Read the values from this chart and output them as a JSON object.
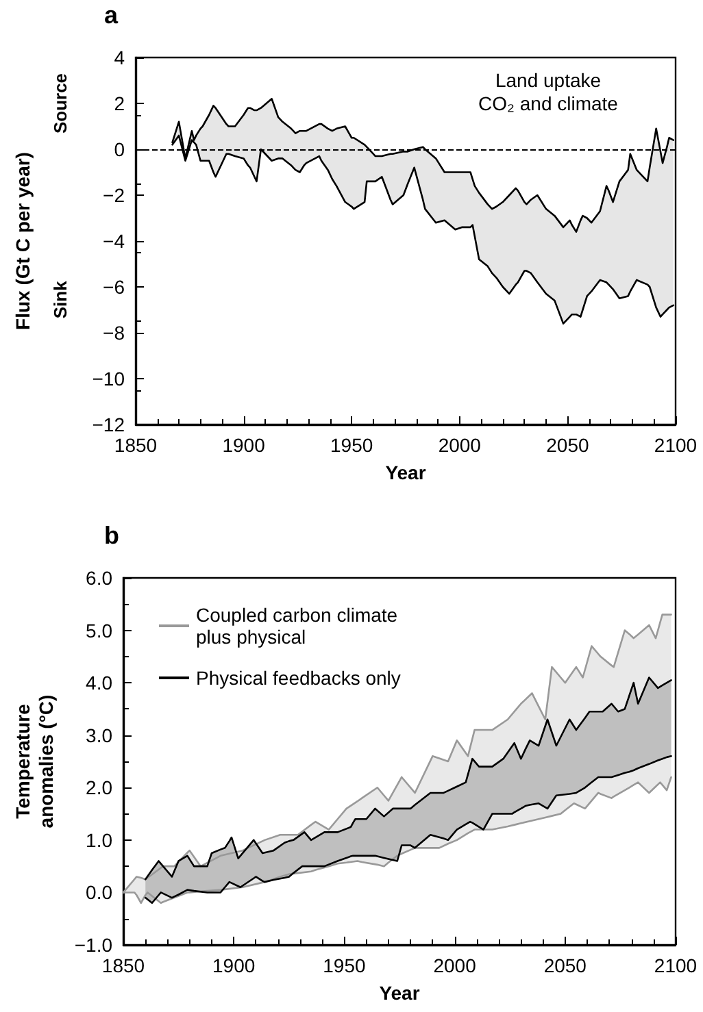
{
  "chart_data": [
    {
      "type": "line",
      "title": "a",
      "xlabel": "Year",
      "ylabel": "Flux (Gt C per year)",
      "annotations": [
        "Source",
        "Sink",
        "Land uptake\nCO₂ and climate"
      ],
      "xlim": [
        1850,
        2100
      ],
      "xticks": [
        1850,
        1900,
        1950,
        2000,
        2050,
        2100
      ],
      "ylim": [
        -12,
        4
      ],
      "yticks": [
        {
          "value": -12,
          "label": "−12"
        },
        {
          "value": -10,
          "label": "−10"
        },
        {
          "value": -8,
          "label": "−8"
        },
        {
          "value": -6,
          "label": "−6"
        },
        {
          "value": -4,
          "label": "−4"
        },
        {
          "value": -2,
          "label": "−2"
        },
        0,
        2,
        4
      ],
      "ref_lines": [
        {
          "axis": "y",
          "value": 0,
          "label": null,
          "color": "#000000",
          "line_style": "dashed"
        }
      ],
      "series": [
        {
          "color": "#000000",
          "x": [
            1867,
            1870,
            1873,
            1876,
            1877,
            1878,
            1880,
            1881,
            1884,
            1886,
            1887,
            1892,
            1893,
            1896,
            1900,
            1902,
            1903,
            1905,
            1906,
            1908,
            1913,
            1916,
            1918,
            1922,
            1923,
            1924,
            1926,
            1928,
            1929,
            1935,
            1936,
            1939,
            1941,
            1943,
            1947,
            1950,
            1951,
            1956,
            1957,
            1960,
            1961,
            1964,
            1968,
            1969,
            1974,
            1976,
            1979,
            1983,
            1984,
            1989,
            1993,
            1998,
            2001,
            2003,
            2005,
            2006,
            2007,
            2009,
            2013,
            2015,
            2017,
            2020,
            2023,
            2026,
            2027,
            2030,
            2031,
            2033,
            2036,
            2040,
            2044,
            2048,
            2051,
            2052,
            2054,
            2056,
            2057,
            2059,
            2061,
            2065,
            2068,
            2069,
            2071,
            2074,
            2078,
            2079,
            2082,
            2087,
            2088,
            2091,
            2093,
            2094,
            2096,
            2097,
            2099
          ],
          "upper": [
            0.3,
            1.2,
            -0.4,
            0.8,
            0.4,
            0.6,
            0.9,
            1.0,
            1.5,
            1.9,
            1.8,
            1.1,
            1.0,
            1.0,
            1.5,
            1.8,
            1.8,
            1.7,
            1.7,
            1.8,
            2.2,
            1.4,
            1.2,
            0.9,
            0.8,
            0.7,
            0.8,
            0.8,
            0.8,
            1.1,
            1.1,
            0.9,
            0.8,
            0.9,
            1.0,
            0.5,
            0.5,
            0.2,
            0.1,
            -0.2,
            -0.3,
            -0.3,
            -0.2,
            -0.2,
            -0.1,
            -0.1,
            0.0,
            0.1,
            0.0,
            -0.4,
            -1.0,
            -1.0,
            -1.0,
            -1.0,
            -1.0,
            -1.3,
            -1.6,
            -1.9,
            -2.4,
            -2.6,
            -2.5,
            -2.3,
            -2.0,
            -1.7,
            -1.8,
            -2.3,
            -2.4,
            -2.2,
            -2.0,
            -2.6,
            -2.9,
            -3.4,
            -3.1,
            -3.3,
            -3.6,
            -3.1,
            -2.9,
            -3.0,
            -3.2,
            -2.7,
            -1.6,
            -1.8,
            -2.3,
            -1.4,
            -0.9,
            -0.2,
            -0.9,
            -1.4,
            -0.8,
            0.9,
            -0.1,
            -0.6,
            0.1,
            0.5,
            0.4
          ],
          "values": [
            0.3,
            1.2,
            -0.4,
            0.8,
            0.4,
            0.6,
            0.9,
            1.0,
            1.5,
            1.9,
            1.8,
            1.1,
            1.0,
            1.0,
            1.5,
            1.8,
            1.8,
            1.7,
            1.7,
            1.8,
            2.2,
            1.4,
            1.2,
            0.9,
            0.8,
            0.7,
            0.8,
            0.8,
            0.8,
            1.1,
            1.1,
            0.9,
            0.8,
            0.9,
            1.0,
            0.5,
            0.5,
            0.2,
            0.1,
            -0.2,
            -0.3,
            -0.3,
            -0.2,
            -0.2,
            -0.1,
            -0.1,
            0.0,
            0.1,
            0.0,
            -0.4,
            -1.0,
            -1.0,
            -1.0,
            -1.0,
            -1.0,
            -1.3,
            -1.6,
            -1.9,
            -2.4,
            -2.6,
            -2.5,
            -2.3,
            -2.0,
            -1.7,
            -1.8,
            -2.3,
            -2.4,
            -2.2,
            -2.0,
            -2.6,
            -2.9,
            -3.4,
            -3.1,
            -3.3,
            -3.6,
            -3.1,
            -2.9,
            -3.0,
            -3.2,
            -2.7,
            -1.6,
            -1.8,
            -2.3,
            -1.4,
            -0.9,
            -0.2,
            -0.9,
            -1.4,
            -0.8,
            0.9,
            -0.1,
            -0.6,
            0.1,
            0.5,
            0.4
          ],
          "lower": [
            0.2,
            0.6,
            -0.5,
            0.4,
            0.3,
            0.2,
            -0.5,
            -0.5,
            -0.5,
            -1.0,
            -1.2,
            -0.2,
            -0.2,
            -0.3,
            -0.4,
            -0.7,
            -0.8,
            -1.2,
            -1.4,
            0.0,
            -0.5,
            -0.4,
            -0.4,
            -0.7,
            -0.8,
            -0.9,
            -1.0,
            -0.7,
            -0.6,
            -0.3,
            -0.5,
            -0.9,
            -1.3,
            -1.6,
            -2.3,
            -2.5,
            -2.6,
            -2.3,
            -1.4,
            -1.4,
            -1.4,
            -1.2,
            -2.2,
            -2.4,
            -2.0,
            -1.5,
            -0.8,
            -2.2,
            -2.6,
            -3.2,
            -3.1,
            -3.5,
            -3.4,
            -3.4,
            -3.4,
            -3.3,
            -3.8,
            -4.8,
            -5.1,
            -5.4,
            -5.6,
            -6.0,
            -6.3,
            -5.9,
            -5.8,
            -5.3,
            -5.3,
            -5.4,
            -5.8,
            -6.3,
            -6.6,
            -7.6,
            -7.3,
            -7.2,
            -7.2,
            -7.3,
            -7.0,
            -6.4,
            -6.2,
            -5.7,
            -5.8,
            -5.9,
            -6.1,
            -6.5,
            -6.4,
            -6.2,
            -5.7,
            -5.9,
            -6.0,
            -6.9,
            -7.3,
            -7.2,
            -7.0,
            -6.9,
            -6.8
          ]
        },
        {
          "color": "#000000",
          "x": [
            1867,
            1870,
            1873,
            1876,
            1877,
            1878,
            1880,
            1881,
            1884,
            1886,
            1887,
            1892,
            1893,
            1896,
            1900,
            1902,
            1903,
            1905,
            1906,
            1908,
            1913,
            1916,
            1918,
            1922,
            1923,
            1924,
            1926,
            1928,
            1929,
            1935,
            1936,
            1939,
            1941,
            1943,
            1947,
            1950,
            1951,
            1956,
            1957,
            1960,
            1961,
            1964,
            1968,
            1969,
            1974,
            1976,
            1979,
            1983,
            1984,
            1989,
            1993,
            1998,
            2001,
            2003,
            2005,
            2006,
            2007,
            2009,
            2013,
            2015,
            2017,
            2020,
            2023,
            2026,
            2027,
            2030,
            2031,
            2033,
            2036,
            2040,
            2044,
            2048,
            2051,
            2052,
            2054,
            2056,
            2057,
            2059,
            2061,
            2065,
            2068,
            2069,
            2071,
            2074,
            2078,
            2079,
            2082,
            2087,
            2088,
            2091,
            2093,
            2094,
            2096,
            2097,
            2099
          ],
          "values": [
            0.2,
            0.6,
            -0.5,
            0.4,
            0.3,
            0.2,
            -0.5,
            -0.5,
            -0.5,
            -1.0,
            -1.2,
            -0.2,
            -0.2,
            -0.3,
            -0.4,
            -0.7,
            -0.8,
            -1.2,
            -1.4,
            0.0,
            -0.5,
            -0.4,
            -0.4,
            -0.7,
            -0.8,
            -0.9,
            -1.0,
            -0.7,
            -0.6,
            -0.3,
            -0.5,
            -0.9,
            -1.3,
            -1.6,
            -2.3,
            -2.5,
            -2.6,
            -2.3,
            -1.4,
            -1.4,
            -1.4,
            -1.2,
            -2.2,
            -2.4,
            -2.0,
            -1.5,
            -0.8,
            -2.2,
            -2.6,
            -3.2,
            -3.1,
            -3.5,
            -3.4,
            -3.4,
            -3.4,
            -3.3,
            -3.8,
            -4.8,
            -5.1,
            -5.4,
            -5.6,
            -6.0,
            -6.3,
            -5.9,
            -5.8,
            -5.3,
            -5.3,
            -5.4,
            -5.8,
            -6.3,
            -6.6,
            -7.6,
            -7.3,
            -7.2,
            -7.2,
            -7.3,
            -7.0,
            -6.4,
            -6.2,
            -5.7,
            -5.8,
            -5.9,
            -6.1,
            -6.5,
            -6.4,
            -6.2,
            -5.7,
            -5.9,
            -6.0,
            -6.9,
            -7.3,
            -7.2,
            -7.0,
            -6.9,
            -6.8
          ]
        }
      ]
    },
    {
      "type": "line",
      "title": "b",
      "xlabel": "Year",
      "ylabel": "Temperature\nanomalies (°C)",
      "legend": "top left",
      "xlim": [
        1850,
        2100
      ],
      "xticks": [
        1850,
        1900,
        1950,
        2000,
        2050,
        2100
      ],
      "ylim": [
        -1,
        6
      ],
      "yticks": [
        {
          "value": -1,
          "label": "−1.0"
        },
        {
          "value": 0,
          "label": "0.0"
        },
        {
          "value": 1,
          "label": "1.0"
        },
        {
          "value": 2,
          "label": "2.0"
        },
        {
          "value": 3,
          "label": "3.0"
        },
        {
          "value": 4,
          "label": "4.0"
        },
        {
          "value": 5,
          "label": "5.0"
        },
        {
          "value": 6,
          "label": "6.0"
        }
      ],
      "series": [
        {
          "name": "Coupled carbon climate plus physical",
          "color": "#999999",
          "x": [
            1850,
            1855,
            1856,
            1858,
            1860,
            1861,
            1867,
            1868,
            1873,
            1879,
            1880,
            1885,
            1894,
            1904,
            1914,
            1921,
            1925,
            1929,
            1935,
            1937,
            1943,
            1947,
            1951,
            1956,
            1958,
            1965,
            1968,
            1970,
            1974,
            1976,
            1982,
            1990,
            1993,
            1997,
            2001,
            2006,
            2009,
            2017,
            2024,
            2028,
            2030,
            2035,
            2038,
            2041,
            2044,
            2048,
            2050,
            2054,
            2055,
            2058,
            2059,
            2062,
            2065,
            2066,
            2071,
            2072,
            2077,
            2079,
            2081,
            2083,
            2088,
            2091,
            2093,
            2094,
            2096,
            2098
          ],
          "upper": [
            0.0,
            0.25,
            0.3,
            0.28,
            0.25,
            0.28,
            0.47,
            0.5,
            0.5,
            0.76,
            0.8,
            0.5,
            0.7,
            0.8,
            1.0,
            1.1,
            1.1,
            1.1,
            1.29,
            1.35,
            1.2,
            1.4,
            1.6,
            1.74,
            1.8,
            2.0,
            1.85,
            1.75,
            2.05,
            2.2,
            1.9,
            2.6,
            2.56,
            2.5,
            2.9,
            2.6,
            3.1,
            3.1,
            3.3,
            3.5,
            3.6,
            3.8,
            3.55,
            3.3,
            4.3,
            4.1,
            4.0,
            4.24,
            4.3,
            4.1,
            4.25,
            4.7,
            4.55,
            4.5,
            4.33,
            4.3,
            5.0,
            4.93,
            4.85,
            4.92,
            5.1,
            4.85,
            5.15,
            5.3,
            5.3,
            5.3
          ],
          "values": [
            0.0,
            0.25,
            0.3,
            0.28,
            0.25,
            0.28,
            0.47,
            0.5,
            0.5,
            0.76,
            0.8,
            0.5,
            0.7,
            0.8,
            1.0,
            1.1,
            1.1,
            1.1,
            1.29,
            1.35,
            1.2,
            1.4,
            1.6,
            1.74,
            1.8,
            2.0,
            1.85,
            1.75,
            2.05,
            2.2,
            1.9,
            2.6,
            2.56,
            2.5,
            2.9,
            2.6,
            3.1,
            3.1,
            3.3,
            3.5,
            3.6,
            3.8,
            3.55,
            3.3,
            4.3,
            4.1,
            4.0,
            4.24,
            4.3,
            4.1,
            4.25,
            4.7,
            4.55,
            4.5,
            4.33,
            4.3,
            5.0,
            4.93,
            4.85,
            4.92,
            5.1,
            4.85,
            5.15,
            5.3,
            5.3,
            5.3
          ],
          "lower": [
            0.0,
            0.0,
            -0.05,
            -0.2,
            -0.05,
            0.0,
            -0.2,
            -0.18,
            -0.1,
            0.0,
            0.0,
            0.02,
            0.05,
            0.1,
            0.2,
            0.3,
            0.35,
            0.37,
            0.4,
            0.43,
            0.5,
            0.55,
            0.57,
            0.6,
            0.58,
            0.53,
            0.5,
            0.57,
            0.7,
            0.74,
            0.85,
            0.85,
            0.85,
            0.93,
            1.0,
            1.13,
            1.2,
            1.2,
            1.26,
            1.3,
            1.32,
            1.37,
            1.4,
            1.43,
            1.46,
            1.5,
            1.57,
            1.7,
            1.68,
            1.62,
            1.6,
            1.75,
            1.9,
            1.88,
            1.8,
            1.83,
            1.95,
            2.0,
            2.05,
            2.1,
            1.9,
            2.02,
            2.1,
            2.05,
            1.95,
            2.2
          ]
        },
        {
          "color": "#999999",
          "x": [
            1850,
            1855,
            1856,
            1858,
            1860,
            1861,
            1867,
            1868,
            1873,
            1879,
            1880,
            1885,
            1894,
            1904,
            1914,
            1921,
            1925,
            1929,
            1935,
            1937,
            1943,
            1947,
            1951,
            1956,
            1958,
            1965,
            1968,
            1970,
            1974,
            1976,
            1982,
            1990,
            1993,
            1997,
            2001,
            2006,
            2009,
            2017,
            2024,
            2028,
            2030,
            2035,
            2038,
            2041,
            2044,
            2048,
            2050,
            2054,
            2055,
            2058,
            2059,
            2062,
            2065,
            2066,
            2071,
            2072,
            2077,
            2079,
            2081,
            2083,
            2088,
            2091,
            2093,
            2094,
            2096,
            2098
          ],
          "values": [
            0.0,
            0.0,
            -0.05,
            -0.2,
            -0.05,
            0.0,
            -0.2,
            -0.18,
            -0.1,
            0.0,
            0.0,
            0.02,
            0.05,
            0.1,
            0.2,
            0.3,
            0.35,
            0.37,
            0.4,
            0.43,
            0.5,
            0.55,
            0.57,
            0.6,
            0.58,
            0.53,
            0.5,
            0.57,
            0.7,
            0.74,
            0.85,
            0.85,
            0.85,
            0.93,
            1.0,
            1.13,
            1.2,
            1.2,
            1.26,
            1.3,
            1.32,
            1.37,
            1.4,
            1.43,
            1.46,
            1.5,
            1.57,
            1.7,
            1.68,
            1.62,
            1.6,
            1.75,
            1.9,
            1.88,
            1.8,
            1.83,
            1.95,
            2.0,
            2.05,
            2.1,
            1.9,
            2.02,
            2.1,
            2.05,
            1.95,
            2.2
          ]
        },
        {
          "name": "Physical feedbacks only",
          "color": "#000000",
          "x": [
            1860,
            1863,
            1866,
            1867,
            1872,
            1875,
            1879,
            1882,
            1888,
            1890,
            1894,
            1896,
            1898,
            1899,
            1902,
            1903,
            1909,
            1910,
            1913,
            1914,
            1918,
            1923,
            1925,
            1927,
            1931,
            1932,
            1935,
            1941,
            1947,
            1953,
            1954,
            1955,
            1960,
            1964,
            1968,
            1972,
            1974,
            1976,
            1980,
            1982,
            1989,
            1995,
            1997,
            2000,
            2001,
            2005,
            2007,
            2008,
            2011,
            2013,
            2017,
            2022,
            2026,
            2027,
            2030,
            2032,
            2034,
            2038,
            2042,
            2046,
            2052,
            2055,
            2059,
            2061,
            2065,
            2067,
            2071,
            2074,
            2077,
            2079,
            2081,
            2083,
            2088,
            2092,
            2094,
            2096,
            2098
          ],
          "upper": [
            0.25,
            0.43,
            0.6,
            0.55,
            0.3,
            0.6,
            0.7,
            0.5,
            0.5,
            0.75,
            0.82,
            0.85,
            0.98,
            1.05,
            0.65,
            0.7,
            1.0,
            0.94,
            0.75,
            0.76,
            0.8,
            0.95,
            0.98,
            1.0,
            1.12,
            1.15,
            1.0,
            1.15,
            1.15,
            1.25,
            1.33,
            1.4,
            1.4,
            1.6,
            1.45,
            1.6,
            1.6,
            1.6,
            1.6,
            1.67,
            1.9,
            1.9,
            1.94,
            2.0,
            2.02,
            2.1,
            2.4,
            2.55,
            2.4,
            2.4,
            2.4,
            2.55,
            2.79,
            2.85,
            2.55,
            2.73,
            2.9,
            2.8,
            3.3,
            2.8,
            3.3,
            3.1,
            3.33,
            3.45,
            3.45,
            3.45,
            3.6,
            3.45,
            3.5,
            3.75,
            4.0,
            3.6,
            4.1,
            3.9,
            3.95,
            4.0,
            4.05
          ],
          "values": [
            0.25,
            0.43,
            0.6,
            0.55,
            0.3,
            0.6,
            0.7,
            0.5,
            0.5,
            0.75,
            0.82,
            0.85,
            0.98,
            1.05,
            0.65,
            0.7,
            1.0,
            0.94,
            0.75,
            0.76,
            0.8,
            0.95,
            0.98,
            1.0,
            1.12,
            1.15,
            1.0,
            1.15,
            1.15,
            1.25,
            1.33,
            1.4,
            1.4,
            1.6,
            1.45,
            1.6,
            1.6,
            1.6,
            1.6,
            1.67,
            1.9,
            1.9,
            1.94,
            2.0,
            2.02,
            2.1,
            2.4,
            2.55,
            2.4,
            2.4,
            2.4,
            2.55,
            2.79,
            2.85,
            2.55,
            2.73,
            2.9,
            2.8,
            3.3,
            2.8,
            3.3,
            3.1,
            3.33,
            3.45,
            3.45,
            3.45,
            3.6,
            3.45,
            3.5,
            3.75,
            4.0,
            3.6,
            4.1,
            3.9,
            3.95,
            4.0,
            4.05
          ],
          "lower": [
            -0.1,
            -0.2,
            -0.05,
            0.0,
            -0.1,
            -0.04,
            0.05,
            0.03,
            0.0,
            0.0,
            0.0,
            0.1,
            0.2,
            0.18,
            0.12,
            0.1,
            0.27,
            0.3,
            0.22,
            0.2,
            0.24,
            0.28,
            0.3,
            0.37,
            0.5,
            0.5,
            0.5,
            0.5,
            0.6,
            0.69,
            0.7,
            0.7,
            0.7,
            0.7,
            0.66,
            0.62,
            0.6,
            0.9,
            0.9,
            0.85,
            1.1,
            1.03,
            1.0,
            1.15,
            1.2,
            1.3,
            1.35,
            1.33,
            1.25,
            1.2,
            1.5,
            1.5,
            1.5,
            1.53,
            1.6,
            1.65,
            1.67,
            1.7,
            1.6,
            1.85,
            1.88,
            1.9,
            2.0,
            2.07,
            2.2,
            2.2,
            2.2,
            2.24,
            2.28,
            2.3,
            2.33,
            2.37,
            2.45,
            2.52,
            2.55,
            2.58,
            2.6
          ]
        },
        {
          "color": "#000000",
          "x": [
            1860,
            1863,
            1866,
            1867,
            1872,
            1875,
            1879,
            1882,
            1888,
            1890,
            1894,
            1896,
            1898,
            1899,
            1902,
            1903,
            1909,
            1910,
            1913,
            1914,
            1918,
            1923,
            1925,
            1927,
            1931,
            1932,
            1935,
            1941,
            1947,
            1953,
            1954,
            1955,
            1960,
            1964,
            1968,
            1972,
            1974,
            1976,
            1980,
            1982,
            1989,
            1995,
            1997,
            2000,
            2001,
            2005,
            2007,
            2008,
            2011,
            2013,
            2017,
            2022,
            2026,
            2027,
            2030,
            2032,
            2034,
            2038,
            2042,
            2046,
            2052,
            2055,
            2059,
            2061,
            2065,
            2067,
            2071,
            2074,
            2077,
            2079,
            2081,
            2083,
            2088,
            2092,
            2094,
            2096,
            2098
          ],
          "values": [
            -0.1,
            -0.2,
            -0.05,
            0.0,
            -0.1,
            -0.04,
            0.05,
            0.03,
            0.0,
            0.0,
            0.0,
            0.1,
            0.2,
            0.18,
            0.12,
            0.1,
            0.27,
            0.3,
            0.22,
            0.2,
            0.24,
            0.28,
            0.3,
            0.37,
            0.5,
            0.5,
            0.5,
            0.5,
            0.6,
            0.69,
            0.7,
            0.7,
            0.7,
            0.7,
            0.66,
            0.62,
            0.6,
            0.9,
            0.9,
            0.85,
            1.1,
            1.03,
            1.0,
            1.15,
            1.2,
            1.3,
            1.35,
            1.33,
            1.25,
            1.2,
            1.5,
            1.5,
            1.5,
            1.53,
            1.6,
            1.65,
            1.67,
            1.7,
            1.6,
            1.85,
            1.88,
            1.9,
            2.0,
            2.07,
            2.2,
            2.2,
            2.2,
            2.24,
            2.28,
            2.3,
            2.33,
            2.37,
            2.45,
            2.52,
            2.55,
            2.58,
            2.6
          ]
        }
      ]
    }
  ]
}
